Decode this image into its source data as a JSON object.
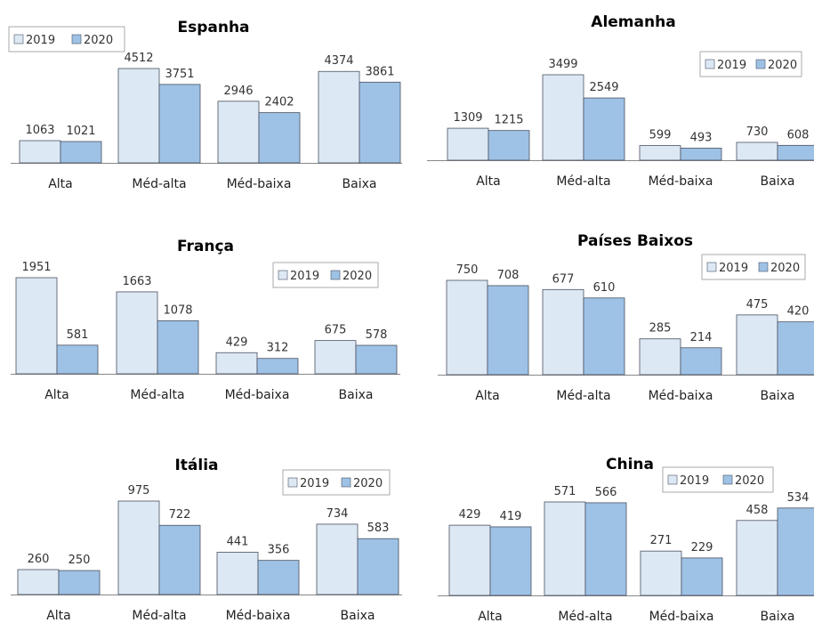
{
  "legend_labels": [
    "2019",
    "2020"
  ],
  "colors": {
    "series_2019": "#dde8f5",
    "series_2020": "#9ec2e6",
    "bar_stroke": "#4a5060",
    "axis": "#888888",
    "legend_border": "#aaaaaa"
  },
  "chart_data": [
    {
      "type": "bar",
      "title": "Espanha",
      "categories": [
        "Alta",
        "Méd-alta",
        "Méd-baixa",
        "Baixa"
      ],
      "series": [
        {
          "name": "2019",
          "values": [
            1063,
            4512,
            2946,
            4374
          ]
        },
        {
          "name": "2020",
          "values": [
            1021,
            3751,
            2402,
            3861
          ]
        }
      ],
      "legend": "top-left"
    },
    {
      "type": "bar",
      "title": "Alemanha",
      "categories": [
        "Alta",
        "Méd-alta",
        "Méd-baixa",
        "Baixa"
      ],
      "series": [
        {
          "name": "2019",
          "values": [
            1309,
            3499,
            599,
            730
          ]
        },
        {
          "name": "2020",
          "values": [
            1215,
            2549,
            493,
            608
          ]
        }
      ],
      "legend": "top-right"
    },
    {
      "type": "bar",
      "title": "França",
      "categories": [
        "Alta",
        "Méd-alta",
        "Méd-baixa",
        "Baixa"
      ],
      "series": [
        {
          "name": "2019",
          "values": [
            1951,
            1663,
            429,
            675
          ]
        },
        {
          "name": "2020",
          "values": [
            581,
            1078,
            312,
            578
          ]
        }
      ],
      "legend": "top-right"
    },
    {
      "type": "bar",
      "title": "Países Baixos",
      "categories": [
        "Alta",
        "Méd-alta",
        "Méd-baixa",
        "Baixa"
      ],
      "series": [
        {
          "name": "2019",
          "values": [
            750,
            677,
            285,
            475
          ]
        },
        {
          "name": "2020",
          "values": [
            708,
            610,
            214,
            420
          ]
        }
      ],
      "legend": "top-right"
    },
    {
      "type": "bar",
      "title": "Itália",
      "categories": [
        "Alta",
        "Méd-alta",
        "Méd-baixa",
        "Baixa"
      ],
      "series": [
        {
          "name": "2019",
          "values": [
            260,
            975,
            441,
            734
          ]
        },
        {
          "name": "2020",
          "values": [
            250,
            722,
            356,
            583
          ]
        }
      ],
      "legend": "top-right"
    },
    {
      "type": "bar",
      "title": "China",
      "categories": [
        "Alta",
        "Méd-alta",
        "Méd-baixa",
        "Baixa"
      ],
      "series": [
        {
          "name": "2019",
          "values": [
            429,
            571,
            271,
            458
          ]
        },
        {
          "name": "2020",
          "values": [
            419,
            566,
            229,
            534
          ]
        }
      ],
      "legend": "top-right"
    }
  ]
}
